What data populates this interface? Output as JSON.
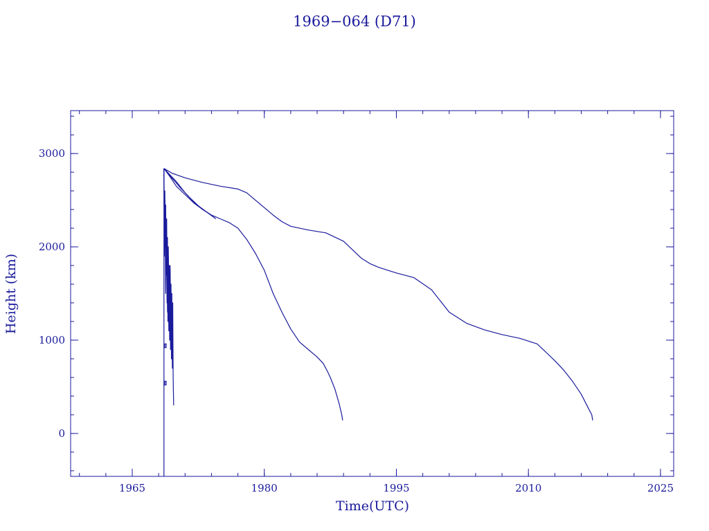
{
  "colors": {
    "ink": "#1a1a9c",
    "background": "#ffffff"
  },
  "chart_data": {
    "type": "line",
    "title": "1969−064 (D71)",
    "xlabel": "Time(UTC)",
    "ylabel": "Height (km)",
    "xlim": [
      1958,
      2026.5
    ],
    "ylim": [
      -460,
      3460
    ],
    "xticks": [
      1965,
      1980,
      1995,
      2010,
      2025
    ],
    "yticks": [
      0,
      1000,
      2000,
      3000
    ],
    "x_minor_step": 3,
    "y_minor_step": 200,
    "grid": false,
    "series": [
      {
        "x": [
          1968.6,
          1969.5,
          1971,
          1973,
          1975,
          1977,
          1978,
          1979,
          1980,
          1981,
          1982,
          1983,
          1985,
          1987,
          1989,
          1990,
          1991,
          1992,
          1993,
          1994,
          1995,
          1997,
          1999,
          2000,
          2001,
          2003,
          2005,
          2007,
          2009,
          2011,
          2012,
          2013,
          2014,
          2015,
          2016,
          2016.7,
          2017.2,
          2017.3
        ],
        "y": [
          2840,
          2790,
          2740,
          2690,
          2650,
          2620,
          2580,
          2500,
          2420,
          2340,
          2270,
          2220,
          2180,
          2150,
          2060,
          1970,
          1880,
          1820,
          1780,
          1750,
          1720,
          1670,
          1540,
          1420,
          1300,
          1180,
          1110,
          1060,
          1020,
          960,
          870,
          780,
          680,
          560,
          420,
          290,
          200,
          140
        ]
      },
      {
        "x": [
          1968.6,
          1969.3,
          1970,
          1971,
          1972,
          1973,
          1974,
          1975,
          1976,
          1977,
          1978,
          1979,
          1980,
          1981,
          1982,
          1983,
          1984,
          1985,
          1986,
          1986.7,
          1987.2,
          1987.5,
          1988,
          1988.5,
          1988.8,
          1988.9
        ],
        "y": [
          2840,
          2750,
          2650,
          2560,
          2470,
          2400,
          2340,
          2300,
          2260,
          2200,
          2080,
          1930,
          1750,
          1500,
          1300,
          1120,
          980,
          900,
          820,
          750,
          660,
          600,
          480,
          320,
          200,
          140
        ]
      },
      {
        "x": [
          1968.6,
          1969.5,
          1970.5,
          1971.5,
          1972.5,
          1973.5,
          1974.5
        ],
        "y": [
          2840,
          2740,
          2630,
          2530,
          2440,
          2370,
          2300
        ]
      },
      {
        "x": [
          1968.6,
          1970,
          1971,
          1972,
          1973,
          1974
        ],
        "y": [
          2840,
          2700,
          2580,
          2480,
          2400,
          2340
        ]
      },
      {
        "x": [
          1968.6,
          1968.65,
          1968.7,
          1968.75,
          1968.8,
          1968.85,
          1968.9,
          1968.95,
          1969.0,
          1969.05,
          1969.1,
          1969.15,
          1969.2,
          1969.25,
          1969.3,
          1969.35,
          1969.4,
          1969.45,
          1969.5,
          1969.55,
          1969.6,
          1969.65,
          1969.7
        ],
        "y": [
          2840,
          2200,
          2600,
          2000,
          2450,
          1700,
          2300,
          1400,
          2100,
          1200,
          1900,
          1100,
          1800,
          1000,
          1700,
          900,
          1600,
          800,
          1500,
          700,
          1400,
          600,
          300
        ]
      },
      {
        "x": [
          1968.6,
          1968.65,
          1968.7,
          1968.8,
          1968.9,
          1969.0,
          1969.1,
          1969.2,
          1969.3,
          1969.4,
          1969.5,
          1969.6
        ],
        "y": [
          2840,
          1900,
          2500,
          1500,
          2300,
          1300,
          2000,
          1100,
          1800,
          1000,
          1300,
          1200
        ]
      },
      {
        "x": [
          1968.6,
          1968.6,
          1968.6
        ],
        "y": [
          2840,
          600,
          -460
        ]
      },
      {
        "x": [
          1968.6,
          1968.7,
          1968.85,
          1968.85,
          1968.7,
          1968.7
        ],
        "y": [
          520,
          520,
          520,
          560,
          560,
          520
        ]
      },
      {
        "x": [
          1968.6,
          1968.7,
          1968.85,
          1968.85,
          1968.7,
          1968.7
        ],
        "y": [
          920,
          920,
          920,
          960,
          960,
          920
        ]
      }
    ]
  }
}
